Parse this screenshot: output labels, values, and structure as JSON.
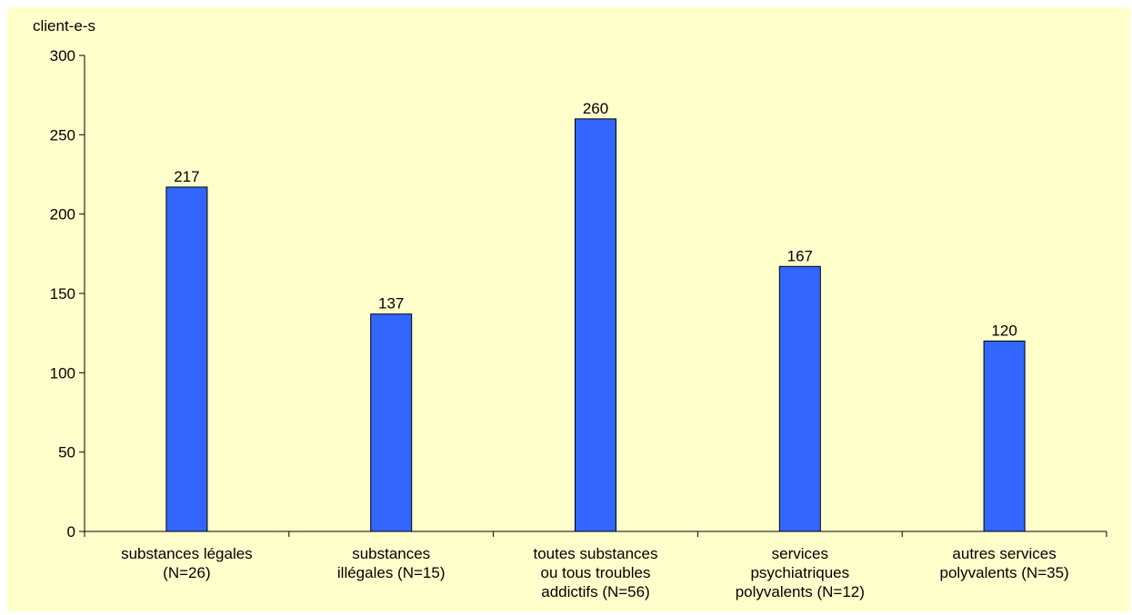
{
  "chart_data": {
    "type": "bar",
    "ylabel": "client-e-s",
    "xlabel": "",
    "title": "",
    "ylim": [
      0,
      300
    ],
    "yticks": [
      0,
      50,
      100,
      150,
      200,
      250,
      300
    ],
    "grid": false,
    "legend": "none",
    "bar_color": "#3366ff",
    "background_color": "#ffffcc",
    "categories": [
      [
        "substances légales",
        "(N=26)"
      ],
      [
        "substances",
        "illégales (N=15)"
      ],
      [
        "toutes substances",
        "ou tous troubles",
        "addictifs (N=56)"
      ],
      [
        "services",
        "psychiatriques",
        "polyvalents (N=12)"
      ],
      [
        "autres services",
        "polyvalents (N=35)"
      ]
    ],
    "values": [
      217,
      137,
      260,
      167,
      120
    ]
  }
}
